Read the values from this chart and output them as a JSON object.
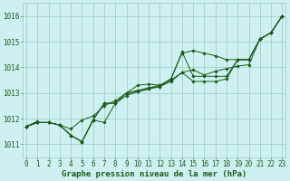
{
  "background_color": "#cff0f0",
  "grid_color": "#99ccbb",
  "line_color": "#1a5c1a",
  "xlabel": "Graphe pression niveau de la mer (hPa)",
  "ylim": [
    1010.5,
    1016.5
  ],
  "xlim": [
    -0.3,
    23.3
  ],
  "yticks": [
    1011,
    1012,
    1013,
    1014,
    1015,
    1016
  ],
  "xticks": [
    0,
    1,
    2,
    3,
    4,
    5,
    6,
    7,
    8,
    9,
    10,
    11,
    12,
    13,
    14,
    15,
    16,
    17,
    18,
    19,
    20,
    21,
    22,
    23
  ],
  "series": [
    [
      1011.7,
      1011.9,
      null,
      null,
      null,
      null,
      null,
      null,
      null,
      null,
      null,
      null,
      null,
      null,
      null,
      null,
      null,
      null,
      null,
      null,
      null,
      null,
      null,
      null
    ],
    [
      1011.7,
      1011.85,
      1011.85,
      1011.75,
      1011.6,
      1011.95,
      1012.1,
      1012.5,
      1012.7,
      1013.0,
      1013.1,
      1013.2,
      1013.3,
      1013.5,
      1013.8,
      1013.9,
      1013.7,
      1013.85,
      1013.95,
      1014.05,
      1014.1,
      1015.1,
      1015.35,
      1016.0
    ],
    [
      1011.7,
      1011.85,
      1011.85,
      1011.75,
      1011.35,
      1011.1,
      1011.95,
      1011.85,
      1012.6,
      1012.9,
      1013.05,
      1013.15,
      1013.25,
      1013.55,
      1014.55,
      1014.65,
      1014.55,
      1014.45,
      1014.3,
      1014.3,
      1014.3,
      1015.1,
      1015.35,
      1016.0
    ],
    [
      1011.7,
      1011.85,
      1011.85,
      1011.75,
      1011.35,
      1011.1,
      1011.95,
      1012.6,
      1012.6,
      1013.0,
      1013.3,
      1013.35,
      1013.3,
      1013.55,
      1014.6,
      1013.65,
      1013.65,
      1013.65,
      1013.65,
      1014.3,
      1014.3,
      1015.1,
      1015.35,
      1016.0
    ],
    [
      1011.7,
      1011.85,
      1011.85,
      1011.75,
      1011.35,
      1011.1,
      1011.95,
      1012.6,
      1012.6,
      1013.0,
      1013.05,
      1013.2,
      1013.25,
      1013.45,
      1013.8,
      1013.45,
      1013.45,
      1013.45,
      1013.55,
      1014.3,
      1014.3,
      1015.1,
      1015.35,
      1016.0
    ]
  ],
  "tick_fontsize": 5.5,
  "xlabel_fontsize": 6.5
}
